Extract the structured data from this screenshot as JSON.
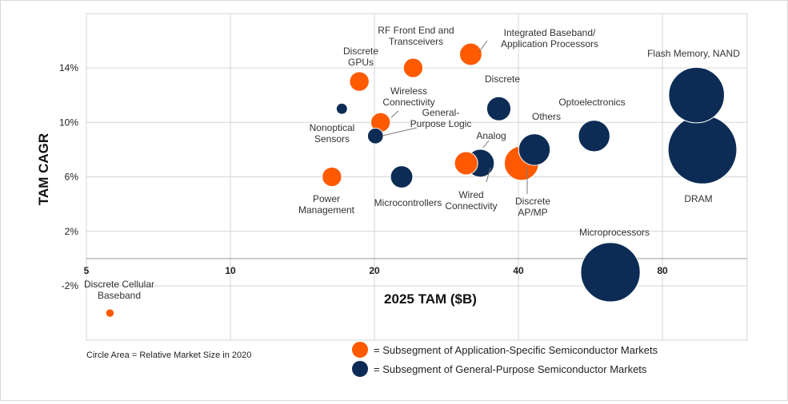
{
  "chart_data": {
    "type": "scatter",
    "subtype": "bubble",
    "title": "",
    "xlabel": "2025 TAM ($B)",
    "ylabel": "TAM CAGR",
    "x_ticks": [
      "5",
      "10",
      "20",
      "40",
      "80"
    ],
    "y_ticks": [
      "-2%",
      "2%",
      "6%",
      "10%",
      "14%"
    ],
    "x_scale": "log",
    "xlim": [
      5,
      120
    ],
    "ylim": [
      -6,
      18
    ],
    "grid": true,
    "note": "Circle Area = Relative Market Size in 2020",
    "legend_position": "bottom-center",
    "colors": {
      "application_specific": "#ff5a00",
      "general_purpose": "#0c2c55"
    },
    "series": [
      {
        "name": "= Subsegment of Application-Specific Semiconductor Markets",
        "color": "#ff5a00",
        "points": [
          {
            "label": "Discrete Cellular Baseband",
            "x": 5.6,
            "y": -4,
            "size": 0.09
          },
          {
            "label": "Power Management",
            "x": 16.3,
            "y": 6,
            "size": 0.21
          },
          {
            "label": "Discrete GPUs",
            "x": 18.6,
            "y": 13,
            "size": 0.21
          },
          {
            "label": "Wireless Connectivity",
            "x": 20.6,
            "y": 10,
            "size": 0.21
          },
          {
            "label": "RF Front End and Transceivers",
            "x": 24.1,
            "y": 14,
            "size": 0.21
          },
          {
            "label": "Integrated Baseband/ Application Processors",
            "x": 31.8,
            "y": 15,
            "size": 0.24
          },
          {
            "label": "Wired Connectivity",
            "x": 31.1,
            "y": 7,
            "size": 0.25
          },
          {
            "label": "Discrete AP/MP",
            "x": 40.6,
            "y": 7,
            "size": 0.37
          }
        ]
      },
      {
        "name": "= Subsegment of General-Purpose Semiconductor Markets",
        "color": "#0c2c55",
        "points": [
          {
            "label": "Nonoptical Sensors",
            "x": 17.1,
            "y": 11,
            "size": 0.12
          },
          {
            "label": "General- Purpose Logic",
            "x": 20.1,
            "y": 9,
            "size": 0.17
          },
          {
            "label": "Microcontrollers",
            "x": 22.8,
            "y": 6,
            "size": 0.24
          },
          {
            "label": "Analog",
            "x": 33.3,
            "y": 7,
            "size": 0.3
          },
          {
            "label": "Discrete",
            "x": 36.4,
            "y": 11,
            "size": 0.26
          },
          {
            "label": "Others",
            "x": 43.2,
            "y": 8,
            "size": 0.34
          },
          {
            "label": "Optoelectronics",
            "x": 57.6,
            "y": 9,
            "size": 0.34
          },
          {
            "label": "Flash Memory, NAND",
            "x": 94.3,
            "y": 12,
            "size": 0.6
          },
          {
            "label": "DRAM",
            "x": 97.0,
            "y": 8,
            "size": 0.74
          },
          {
            "label": "Microprocessors",
            "x": 62.3,
            "y": -1,
            "size": 0.64
          }
        ]
      }
    ]
  }
}
